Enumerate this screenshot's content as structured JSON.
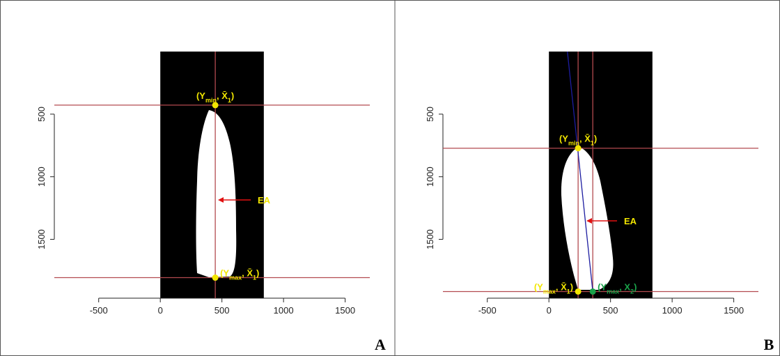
{
  "chart_data": [
    {
      "type": "image",
      "panel_label": "A",
      "xlim": [
        -860,
        1700
      ],
      "ylim": [
        1970,
        0
      ],
      "xticks": [
        -500,
        0,
        500,
        1000,
        1500
      ],
      "yticks": [
        500,
        1000,
        1500
      ],
      "image_xlim": [
        0,
        840
      ],
      "image_ylim": [
        0,
        1970
      ],
      "line_color": "#b34a4f",
      "hlines": [
        428,
        1806
      ],
      "vlines": [
        446
      ],
      "segments": [],
      "points": [
        {
          "x": 446,
          "y": 428,
          "color": "#f2e600",
          "label": [
            {
              "text": "(Y"
            },
            {
              "text": "min",
              "sub": true
            },
            {
              "text": ", X̄"
            },
            {
              "text": "1",
              "sub": true
            },
            {
              "text": ")"
            }
          ]
        },
        {
          "x": 446,
          "y": 1806,
          "color": "#f2e600",
          "label": [
            {
              "text": "(Y"
            },
            {
              "text": "max",
              "sub": true
            },
            {
              "text": ", X̄"
            },
            {
              "text": "1",
              "sub": true
            },
            {
              "text": ")"
            }
          ]
        }
      ],
      "annotation": "EA"
    },
    {
      "type": "image",
      "panel_label": "B",
      "xlim": [
        -860,
        1700
      ],
      "ylim": [
        1970,
        0
      ],
      "xticks": [
        -500,
        0,
        500,
        1000,
        1500
      ],
      "yticks": [
        500,
        1000,
        1500
      ],
      "image_xlim": [
        0,
        840
      ],
      "image_ylim": [
        0,
        1970
      ],
      "line_color": "#b34a4f",
      "hlines": [
        772,
        1917
      ],
      "vlines": [
        237,
        356
      ],
      "segments": [
        {
          "color": "#1c1ca0",
          "x": [
            150,
            356
          ],
          "y": [
            0,
            1917
          ]
        }
      ],
      "points": [
        {
          "x": 237,
          "y": 772,
          "color": "#f2e600",
          "label": [
            {
              "text": "(Y"
            },
            {
              "text": "min",
              "sub": true
            },
            {
              "text": ", X̄"
            },
            {
              "text": "1",
              "sub": true
            },
            {
              "text": ")"
            }
          ]
        },
        {
          "x": 237,
          "y": 1917,
          "color": "#f2e600",
          "label": [
            {
              "text": "(Y"
            },
            {
              "text": "max",
              "sub": true
            },
            {
              "text": ", X̄"
            },
            {
              "text": "1",
              "sub": true
            },
            {
              "text": ")"
            }
          ]
        },
        {
          "x": 356,
          "y": 1917,
          "color": "#1aa34a",
          "label": [
            {
              "text": "(Y"
            },
            {
              "text": "max",
              "sub": true
            },
            {
              "text": ", X"
            },
            {
              "text": "2",
              "sub": true
            },
            {
              "text": ")"
            }
          ]
        }
      ],
      "annotation": "EA"
    }
  ]
}
